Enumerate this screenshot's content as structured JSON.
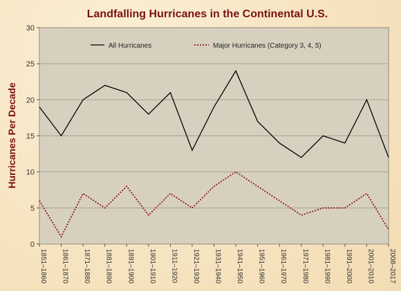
{
  "chart_data": {
    "type": "line",
    "title": "Landfalling Hurricanes in the Continental U.S.",
    "xlabel": "",
    "ylabel": "Hurricanes Per Decade",
    "ylim": [
      0,
      30
    ],
    "yticks": [
      0,
      5,
      10,
      15,
      20,
      25,
      30
    ],
    "grid": true,
    "legend_position": "top",
    "categories": [
      "1851–1860",
      "1861–1870",
      "1871–1880",
      "1881–1890",
      "1891–1900",
      "1901–1910",
      "1911–1920",
      "1921–1930",
      "1931–1940",
      "1941–1950",
      "1951–1960",
      "1961–1970",
      "1971–1980",
      "1981–1990",
      "1991–2000",
      "2001–2010",
      "2008–2017"
    ],
    "series": [
      {
        "name": "All Hurricanes",
        "color": "#000000",
        "dashed": false,
        "values": [
          19,
          15,
          20,
          22,
          21,
          18,
          21,
          13,
          19,
          24,
          17,
          14,
          12,
          15,
          14,
          20,
          12
        ]
      },
      {
        "name": "Major Hurricanes (Category 3, 4, 5)",
        "color": "#8b1a1a",
        "dashed": true,
        "values": [
          6,
          1,
          7,
          5,
          8,
          4,
          7,
          5,
          8,
          10,
          8,
          6,
          4,
          5,
          5,
          7,
          2
        ]
      }
    ],
    "colors": {
      "plot_bg": "#d8d0bf",
      "grid": "#a9a294",
      "title": "#7a1212"
    }
  }
}
